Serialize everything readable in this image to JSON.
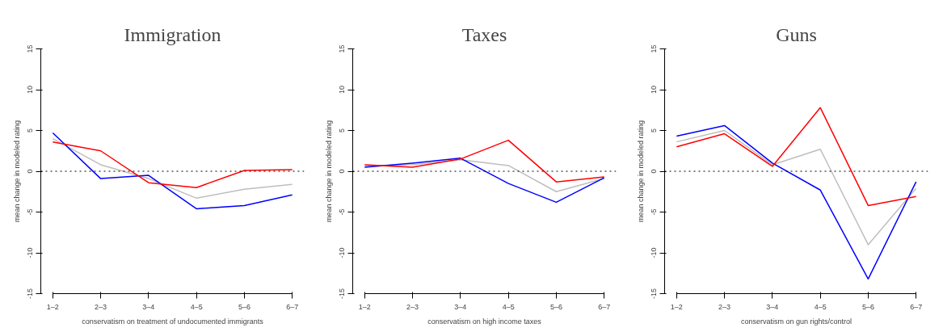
{
  "chart_data": [
    {
      "type": "line",
      "title": "Immigration",
      "xlabel": "conservatism on treatment of undocumented immigrants",
      "ylabel": "mean change in modeled rating",
      "categories": [
        "1–2",
        "2–3",
        "3–4",
        "4–5",
        "5–6",
        "6–7"
      ],
      "ylim": [
        -15,
        15
      ],
      "yticks": [
        -15,
        -10,
        -5,
        0,
        5,
        10,
        15
      ],
      "ref_lines": [
        {
          "axis": "y",
          "value": 0,
          "line_style": "dotted",
          "color": "#000000"
        }
      ],
      "series": [
        {
          "color": "#bebebe",
          "values": [
            4.0,
            0.8,
            -0.9,
            -3.3,
            -2.2,
            -1.6
          ]
        },
        {
          "color": "#0000ff",
          "values": [
            4.7,
            -0.9,
            -0.5,
            -4.6,
            -4.2,
            -2.9
          ]
        },
        {
          "color": "#ff0000",
          "values": [
            3.6,
            2.5,
            -1.4,
            -2.0,
            0.1,
            0.2
          ]
        }
      ]
    },
    {
      "type": "line",
      "title": "Taxes",
      "xlabel": "conservatism on high income taxes",
      "ylabel": "mean change in modeled rating",
      "categories": [
        "1–2",
        "2–3",
        "3–4",
        "4–5",
        "5–6",
        "6–7"
      ],
      "ylim": [
        -15,
        15
      ],
      "yticks": [
        -15,
        -10,
        -5,
        0,
        5,
        10,
        15
      ],
      "ref_lines": [
        {
          "axis": "y",
          "value": 0,
          "line_style": "dotted",
          "color": "#000000"
        }
      ],
      "series": [
        {
          "color": "#bebebe",
          "values": [
            0.6,
            0.8,
            1.4,
            0.7,
            -2.5,
            -0.9
          ]
        },
        {
          "color": "#0000ff",
          "values": [
            0.5,
            1.0,
            1.6,
            -1.5,
            -3.8,
            -0.8
          ]
        },
        {
          "color": "#ff0000",
          "values": [
            0.8,
            0.5,
            1.5,
            3.8,
            -1.3,
            -0.7
          ]
        }
      ]
    },
    {
      "type": "line",
      "title": "Guns",
      "xlabel": "conservatism on gun rights/control",
      "ylabel": "mean change in modeled rating",
      "categories": [
        "1–2",
        "2–3",
        "3–4",
        "4–5",
        "5–6",
        "6–7"
      ],
      "ylim": [
        -15,
        15
      ],
      "yticks": [
        -15,
        -10,
        -5,
        0,
        5,
        10,
        15
      ],
      "ref_lines": [
        {
          "axis": "y",
          "value": 0,
          "line_style": "dotted",
          "color": "#000000"
        }
      ],
      "series": [
        {
          "color": "#bebebe",
          "values": [
            3.6,
            5.0,
            0.8,
            2.7,
            -9.0,
            -2.1
          ]
        },
        {
          "color": "#0000ff",
          "values": [
            4.3,
            5.6,
            1.0,
            -2.3,
            -13.2,
            -1.3
          ]
        },
        {
          "color": "#ff0000",
          "values": [
            3.0,
            4.6,
            0.6,
            7.8,
            -4.2,
            -3.1
          ]
        }
      ]
    }
  ]
}
